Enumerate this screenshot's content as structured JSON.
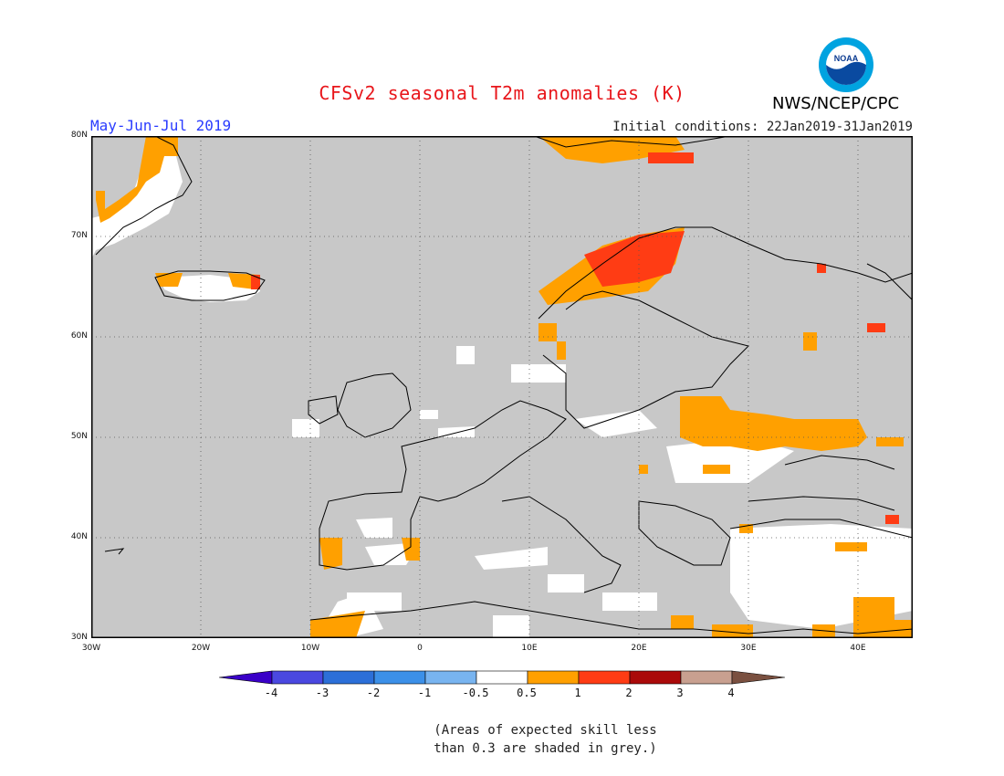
{
  "title": "CFSv2 seasonal T2m anomalies (K)",
  "period": "May-Jun-Jul 2019",
  "initial_conditions": "Initial conditions: 22Jan2019-31Jan2019",
  "agency": "NWS/NCEP/CPC",
  "logo_text": "NOAA",
  "map": {
    "lon_range": [
      -30,
      45
    ],
    "lat_range": [
      30,
      80
    ],
    "lat_labels": [
      "80N",
      "70N",
      "60N",
      "50N",
      "40N",
      "30N"
    ],
    "lon_labels": [
      "30W",
      "20W",
      "10W",
      "0",
      "10E",
      "20E",
      "30E",
      "40E"
    ],
    "grey_meaning": "skill < 0.3",
    "colors": {
      "grey": "#c8c8c8",
      "white": "#ffffff",
      "orange": "#ffa000",
      "red_orange": "#ff3c14",
      "land_line": "#000000"
    }
  },
  "colorbar": {
    "labels": [
      "-4",
      "-3",
      "-2",
      "-1",
      "-0.5",
      "0.5",
      "1",
      "2",
      "3",
      "4"
    ],
    "colors": [
      "#3a00c8",
      "#4a48e0",
      "#2c6fd8",
      "#3c90e8",
      "#78b4f0",
      "#ffffff",
      "#ffa000",
      "#ff3c14",
      "#aa0a0a",
      "#c8a090",
      "#7a5040"
    ]
  },
  "note": [
    "(Areas of expected skill less",
    "than 0.3 are shaded in grey.)"
  ]
}
